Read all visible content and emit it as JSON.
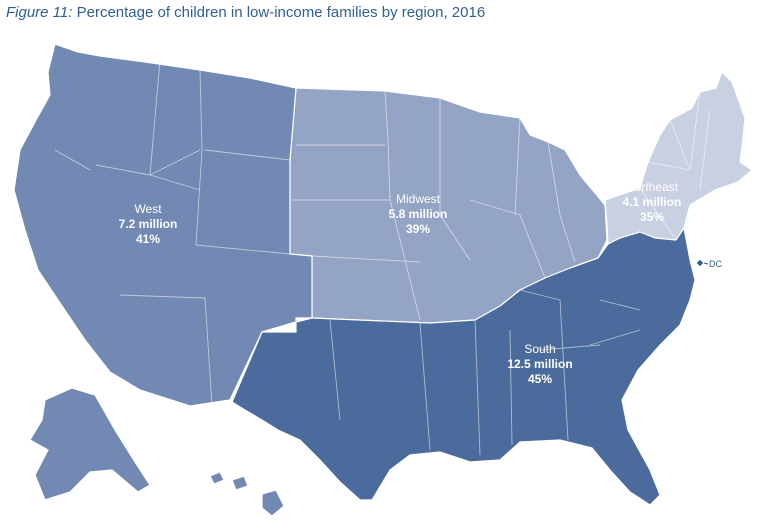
{
  "title": {
    "figure_label": "Figure 11:",
    "text": "Percentage of children in low-income families by region, 2016"
  },
  "colors": {
    "west": "#7189b3",
    "midwest": "#94a4c4",
    "northeast": "#c8d0e2",
    "south": "#4a6b9b",
    "dc": "#2f5f91"
  },
  "regions": [
    {
      "key": "west",
      "name": "West",
      "count": "7.2 million",
      "percent": "41%"
    },
    {
      "key": "midwest",
      "name": "Midwest",
      "count": "5.8 million",
      "percent": "39%"
    },
    {
      "key": "northeast",
      "name": "Northeast",
      "count": "4.1 million",
      "percent": "35%"
    },
    {
      "key": "south",
      "name": "South",
      "count": "12.5 million",
      "percent": "45%"
    }
  ],
  "dc_label": "DC"
}
